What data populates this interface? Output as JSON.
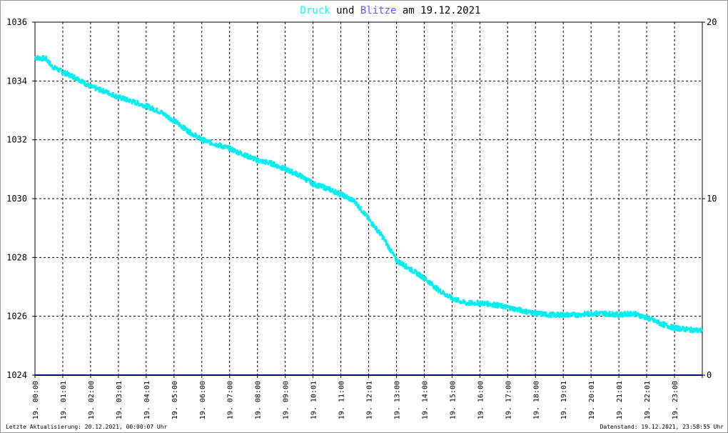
{
  "title": {
    "part1": "Druck",
    "part2": " und ",
    "part3": "Blitze",
    "part4": " am 19.12.2021",
    "colors": {
      "druck": "#00ffff",
      "blitze": "#5a5aff",
      "text": "#000000"
    }
  },
  "footer": {
    "left": "Letzte Aktualisierung: 20.12.2021, 00:00:07 Uhr",
    "right": "Datenstand: 19.12.2021, 23:58:55 Uhr"
  },
  "chart_data": {
    "type": "line",
    "x_tick_labels": [
      "19. 00:00",
      "19. 01:01",
      "19. 02:00",
      "19. 03:01",
      "19. 04:01",
      "19. 05:00",
      "19. 06:00",
      "19. 07:00",
      "19. 08:00",
      "19. 09:00",
      "19. 10:01",
      "19. 11:00",
      "19. 12:01",
      "19. 13:00",
      "19. 14:00",
      "19. 15:00",
      "19. 16:00",
      "19. 17:00",
      "19. 18:00",
      "19. 19:01",
      "19. 20:01",
      "19. 21:01",
      "19. 22:01",
      "19. 23:00"
    ],
    "y_left": {
      "ticks": [
        "1036",
        "1034",
        "1032",
        "1030",
        "1028",
        "1026",
        "1024"
      ],
      "min": 1024,
      "max": 1036,
      "step": 2
    },
    "y_right": {
      "ticks": [
        "20",
        "10",
        "0"
      ],
      "min": 0,
      "max": 20
    },
    "grid": true,
    "series": [
      {
        "color": "#00eeee",
        "hours": [
          0,
          0.4,
          0.6,
          1,
          1.5,
          2,
          2.5,
          3,
          3.5,
          4,
          4.5,
          5,
          5.5,
          6,
          6.5,
          7,
          7.5,
          8,
          8.5,
          9,
          9.5,
          10,
          10.5,
          11,
          11.5,
          12,
          12.5,
          13,
          13.5,
          14,
          14.5,
          15,
          15.5,
          16,
          16.5,
          17,
          17.5,
          18,
          18.5,
          19,
          19.5,
          20,
          20.5,
          21,
          21.5,
          22,
          22.5,
          23,
          23.5,
          24
        ],
        "values": [
          1034.8,
          1034.75,
          1034.5,
          1034.3,
          1034.1,
          1033.8,
          1033.65,
          1033.45,
          1033.3,
          1033.15,
          1032.95,
          1032.65,
          1032.3,
          1032.0,
          1031.85,
          1031.7,
          1031.5,
          1031.3,
          1031.2,
          1031.0,
          1030.8,
          1030.5,
          1030.35,
          1030.15,
          1029.9,
          1029.3,
          1028.7,
          1027.9,
          1027.6,
          1027.3,
          1026.9,
          1026.6,
          1026.45,
          1026.45,
          1026.4,
          1026.3,
          1026.2,
          1026.1,
          1026.05,
          1026.05,
          1026.05,
          1026.1,
          1026.1,
          1026.05,
          1026.1,
          1025.95,
          1025.75,
          1025.6,
          1025.55,
          1025.5
        ]
      },
      {
        "color": "#00007a",
        "hours": [
          0,
          24
        ],
        "values": [
          0,
          0
        ]
      }
    ]
  }
}
